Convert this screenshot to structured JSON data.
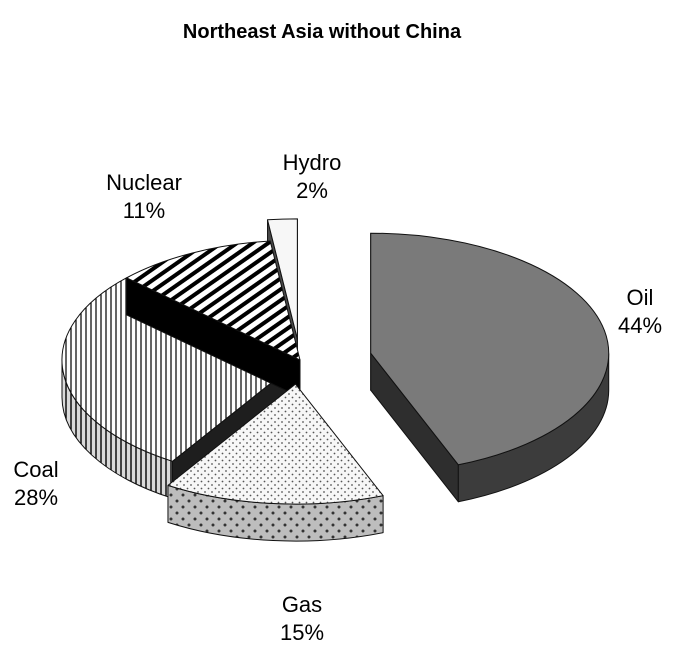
{
  "chart_data": {
    "type": "pie",
    "title": "Northeast Asia without China",
    "slices": [
      {
        "name": "Oil",
        "value": 44,
        "label": "44%"
      },
      {
        "name": "Gas",
        "value": 15,
        "label": "15%"
      },
      {
        "name": "Coal",
        "value": 28,
        "label": "28%"
      },
      {
        "name": "Nuclear",
        "value": 11,
        "label": "11%"
      },
      {
        "name": "Hydro",
        "value": 2,
        "label": "2%"
      }
    ],
    "style": "3d-exploded",
    "colors": {
      "Oil": "#7a7a7a",
      "Gas": "#f2f2f2",
      "Coal": "#ffffff",
      "Nuclear": "#000000",
      "Hydro": "#f7f7f7"
    }
  }
}
